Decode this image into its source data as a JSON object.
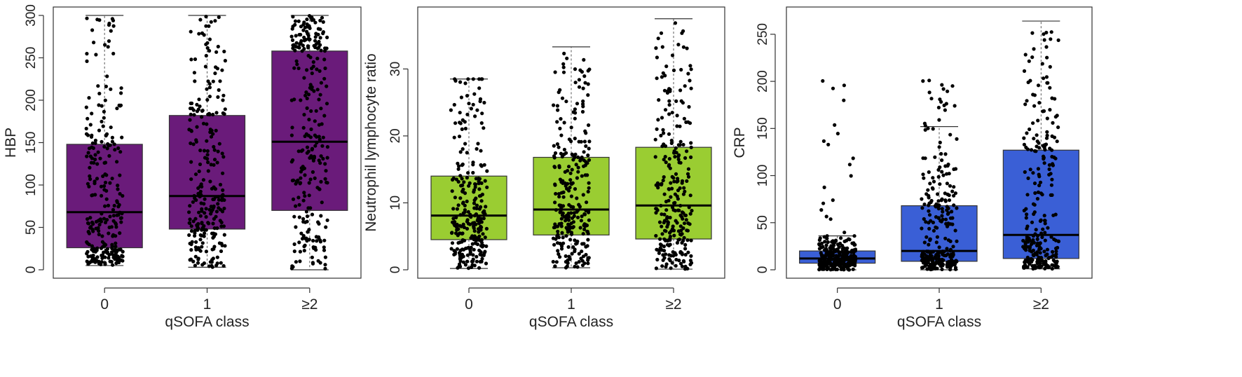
{
  "figure": {
    "panel_count": 3
  },
  "chart_data": [
    {
      "type": "boxplot",
      "xlabel": "qSOFA class",
      "ylabel": "HBP",
      "categories": [
        "0",
        "1",
        "≥2"
      ],
      "ylim": [
        0,
        300
      ],
      "yticks": [
        0,
        50,
        100,
        150,
        200,
        250,
        300
      ],
      "box_color": "#6a1b7a",
      "boxes": [
        {
          "category": "0",
          "whisker_low": 5,
          "q1": 26,
          "median": 68,
          "q3": 148,
          "whisker_high": 300
        },
        {
          "category": "1",
          "whisker_low": 3,
          "q1": 48,
          "median": 87,
          "q3": 182,
          "whisker_high": 300
        },
        {
          "category": "≥2",
          "whisker_low": 0,
          "q1": 70,
          "median": 151,
          "q3": 258,
          "whisker_high": 300
        }
      ],
      "points_per_group": 260,
      "grid": false,
      "legend": "none"
    },
    {
      "type": "boxplot",
      "xlabel": "qSOFA class",
      "ylabel": "Neutrophil lymphocyte ratio",
      "categories": [
        "0",
        "1",
        "≥2"
      ],
      "ylim": [
        0,
        38
      ],
      "yticks": [
        0,
        10,
        20,
        30
      ],
      "box_color": "#9acd32",
      "boxes": [
        {
          "category": "0",
          "whisker_low": 0.2,
          "q1": 4.5,
          "median": 8.1,
          "q3": 14.0,
          "whisker_high": 28.5
        },
        {
          "category": "1",
          "whisker_low": 0.3,
          "q1": 5.2,
          "median": 9.0,
          "q3": 16.8,
          "whisker_high": 33.3
        },
        {
          "category": "≥2",
          "whisker_low": 0.1,
          "q1": 4.6,
          "median": 9.6,
          "q3": 18.3,
          "whisker_high": 37.5
        }
      ],
      "points_per_group": 260,
      "grid": false,
      "legend": "none"
    },
    {
      "type": "boxplot",
      "xlabel": "qSOFA class",
      "ylabel": "CRP",
      "categories": [
        "0",
        "1",
        "≥2"
      ],
      "ylim": [
        0,
        270
      ],
      "yticks": [
        0,
        50,
        100,
        150,
        200,
        250
      ],
      "box_color": "#3a5fd6",
      "boxes": [
        {
          "category": "0",
          "whisker_low": 0,
          "q1": 7,
          "median": 12,
          "q3": 20,
          "whisker_high": 36
        },
        {
          "category": "1",
          "whisker_low": 0,
          "q1": 9,
          "median": 20,
          "q3": 68,
          "whisker_high": 152
        },
        {
          "category": "≥2",
          "whisker_low": 1,
          "q1": 12,
          "median": 37,
          "q3": 127,
          "whisker_high": 264
        }
      ],
      "points_per_group": 260,
      "grid": false,
      "legend": "none"
    }
  ]
}
